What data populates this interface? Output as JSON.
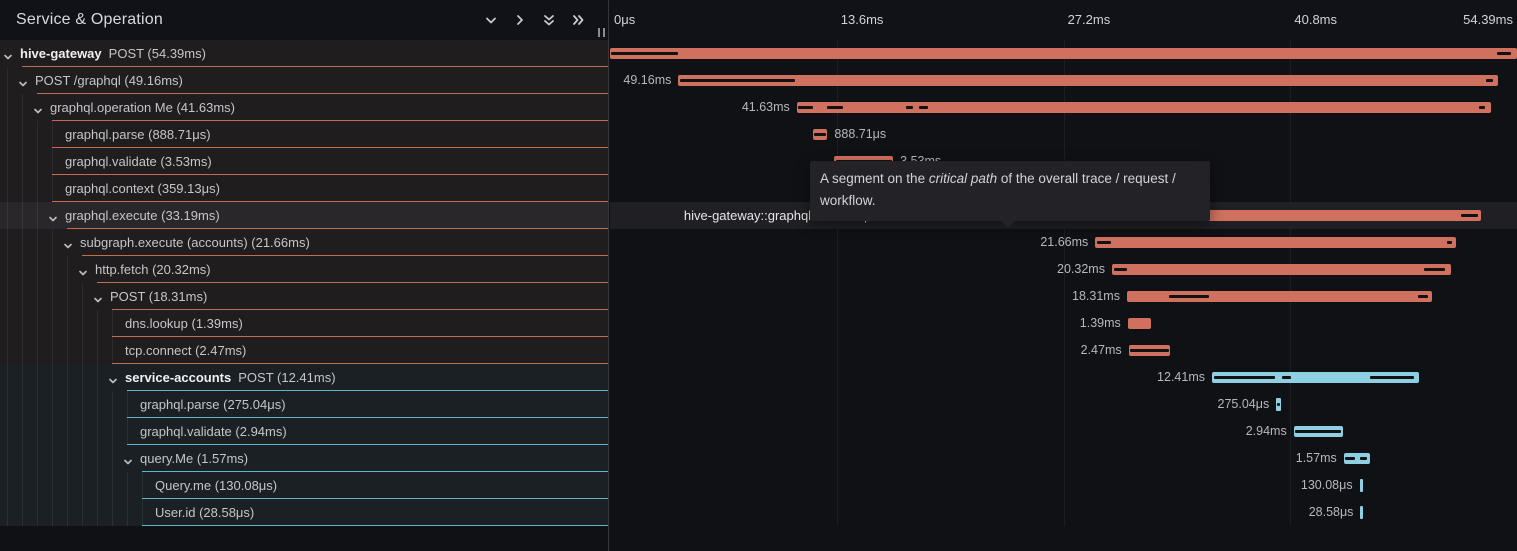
{
  "header": {
    "title": "Service & Operation",
    "icons": [
      {
        "name": "collapse-one-icon",
        "glyph": "chevron-down"
      },
      {
        "name": "expand-one-icon",
        "glyph": "chevron-right"
      },
      {
        "name": "collapse-all-icon",
        "glyph": "double-chevron-down"
      },
      {
        "name": "expand-all-icon",
        "glyph": "double-chevron-right"
      }
    ]
  },
  "timeline": {
    "end_ms": 54.39,
    "ticks": [
      {
        "label": "0μs",
        "t": 0
      },
      {
        "label": "13.6ms",
        "t": 13.6
      },
      {
        "label": "27.2ms",
        "t": 27.2
      },
      {
        "label": "40.8ms",
        "t": 40.8
      },
      {
        "label": "54.39ms",
        "t": 54.39,
        "align": "right"
      }
    ]
  },
  "tooltip": {
    "text_before": "A segment on the ",
    "em": "critical path",
    "text_after": " of the overall trace / request / workflow."
  },
  "colors": {
    "salmon": "#d0715f",
    "blue": "#8fcfe3",
    "critical": "#121212",
    "salmon_divider": "#c76a55",
    "blue_divider": "#5fb5cd"
  },
  "rows": [
    {
      "service": "hive-gateway",
      "text": "POST (54.39ms)",
      "depth": 0,
      "chevron": true,
      "color": "salmon",
      "start": 0,
      "dur": 54.39,
      "dur_label": "",
      "label_side": "none",
      "critical": [
        [
          0,
          4.0
        ],
        [
          53.2,
          54.05
        ]
      ]
    },
    {
      "service": "",
      "text": "POST /graphql (49.16ms)",
      "depth": 1,
      "chevron": true,
      "color": "salmon",
      "start": 4.1,
      "dur": 49.16,
      "dur_label": "49.16ms",
      "label_side": "left",
      "critical": [
        [
          4.2,
          11.1
        ],
        [
          52.55,
          52.95
        ]
      ]
    },
    {
      "service": "",
      "text": "graphql.operation Me (41.63ms)",
      "depth": 2,
      "chevron": true,
      "color": "salmon",
      "start": 11.2,
      "dur": 41.63,
      "dur_label": "41.63ms",
      "label_side": "left",
      "critical": [
        [
          11.3,
          12.15
        ],
        [
          13.0,
          13.95
        ],
        [
          17.75,
          18.2
        ],
        [
          18.55,
          19.05
        ],
        [
          52.1,
          52.5
        ]
      ]
    },
    {
      "service": "",
      "text": "graphql.parse (888.71μs)",
      "depth": 3,
      "chevron": false,
      "color": "salmon",
      "start": 12.15,
      "dur": 0.889,
      "dur_label": "888.71μs",
      "label_side": "right",
      "critical": [
        [
          12.25,
          12.95
        ]
      ]
    },
    {
      "service": "",
      "text": "graphql.validate (3.53ms)",
      "depth": 3,
      "chevron": false,
      "color": "salmon",
      "start": 13.45,
      "dur": 3.53,
      "dur_label": "3.53ms",
      "label_side": "right",
      "critical": [
        [
          13.55,
          16.9
        ]
      ]
    },
    {
      "service": "",
      "text": "graphql.context (359.13μs)",
      "depth": 3,
      "chevron": false,
      "color": "salmon",
      "start": 17.1,
      "dur": 0.359,
      "dur_label": "359.13μs",
      "label_side": "right",
      "critical": []
    },
    {
      "service": "",
      "text": "graphql.execute (33.19ms)",
      "depth": 3,
      "chevron": true,
      "color": "salmon",
      "start": 19.05,
      "dur": 33.19,
      "dur_label": "hive-gateway::graphql.execute | 33.19ms",
      "label_side": "left",
      "hovered": true,
      "critical": [
        [
          19.15,
          29.0
        ],
        [
          51.05,
          52.05
        ]
      ]
    },
    {
      "service": "",
      "text": "subgraph.execute (accounts) (21.66ms)",
      "depth": 4,
      "chevron": true,
      "color": "salmon",
      "start": 29.1,
      "dur": 21.66,
      "dur_label": "21.66ms",
      "label_side": "left",
      "critical": [
        [
          29.2,
          30.05
        ],
        [
          50.2,
          50.5
        ]
      ]
    },
    {
      "service": "",
      "text": "http.fetch (20.32ms)",
      "depth": 5,
      "chevron": true,
      "color": "salmon",
      "start": 30.1,
      "dur": 20.32,
      "dur_label": "20.32ms",
      "label_side": "left",
      "critical": [
        [
          30.2,
          31.0
        ],
        [
          48.8,
          50.05
        ]
      ]
    },
    {
      "service": "",
      "text": "POST (18.31ms)",
      "depth": 6,
      "chevron": true,
      "color": "salmon",
      "start": 31.0,
      "dur": 18.31,
      "dur_label": "18.31ms",
      "label_side": "left",
      "critical": [
        [
          33.5,
          35.9
        ],
        [
          48.45,
          49.05
        ]
      ]
    },
    {
      "service": "",
      "text": "dns.lookup (1.39ms)",
      "depth": 7,
      "chevron": false,
      "color": "salmon",
      "start": 31.05,
      "dur": 1.39,
      "dur_label": "1.39ms",
      "label_side": "left",
      "critical": []
    },
    {
      "service": "",
      "text": "tcp.connect (2.47ms)",
      "depth": 7,
      "chevron": false,
      "color": "salmon",
      "start": 31.1,
      "dur": 2.47,
      "dur_label": "2.47ms",
      "label_side": "left",
      "critical": [
        [
          31.15,
          33.5
        ]
      ]
    },
    {
      "service": "service-accounts",
      "text": "POST (12.41ms)",
      "depth": 7,
      "chevron": true,
      "color": "blue",
      "start": 36.1,
      "dur": 12.41,
      "dur_label": "12.41ms",
      "label_side": "left",
      "critical": [
        [
          36.2,
          39.9
        ],
        [
          40.3,
          40.85
        ],
        [
          45.6,
          48.2
        ]
      ]
    },
    {
      "service": "",
      "text": "graphql.parse (275.04μs)",
      "depth": 8,
      "chevron": false,
      "color": "blue",
      "start": 39.95,
      "dur": 0.275,
      "dur_label": "275.04μs",
      "label_side": "left",
      "critical": [
        [
          40.0,
          40.16
        ]
      ]
    },
    {
      "service": "",
      "text": "graphql.validate (2.94ms)",
      "depth": 8,
      "chevron": false,
      "color": "blue",
      "start": 41.0,
      "dur": 2.94,
      "dur_label": "2.94ms",
      "label_side": "left",
      "critical": [
        [
          41.1,
          43.85
        ]
      ]
    },
    {
      "service": "",
      "text": "query.Me (1.57ms)",
      "depth": 8,
      "chevron": true,
      "color": "blue",
      "start": 44.0,
      "dur": 1.57,
      "dur_label": "1.57ms",
      "label_side": "left",
      "critical": [
        [
          44.1,
          44.7
        ],
        [
          45.0,
          45.4
        ]
      ]
    },
    {
      "service": "",
      "text": "Query.me (130.08μs)",
      "depth": 9,
      "chevron": false,
      "color": "blue",
      "start": 44.95,
      "dur": 0.13,
      "dur_label": "130.08μs",
      "label_side": "left",
      "critical": []
    },
    {
      "service": "",
      "text": "User.id (28.58μs)",
      "depth": 9,
      "chevron": false,
      "color": "blue",
      "start": 45.0,
      "dur": 0.029,
      "dur_label": "28.58μs",
      "label_side": "left",
      "critical": []
    }
  ]
}
